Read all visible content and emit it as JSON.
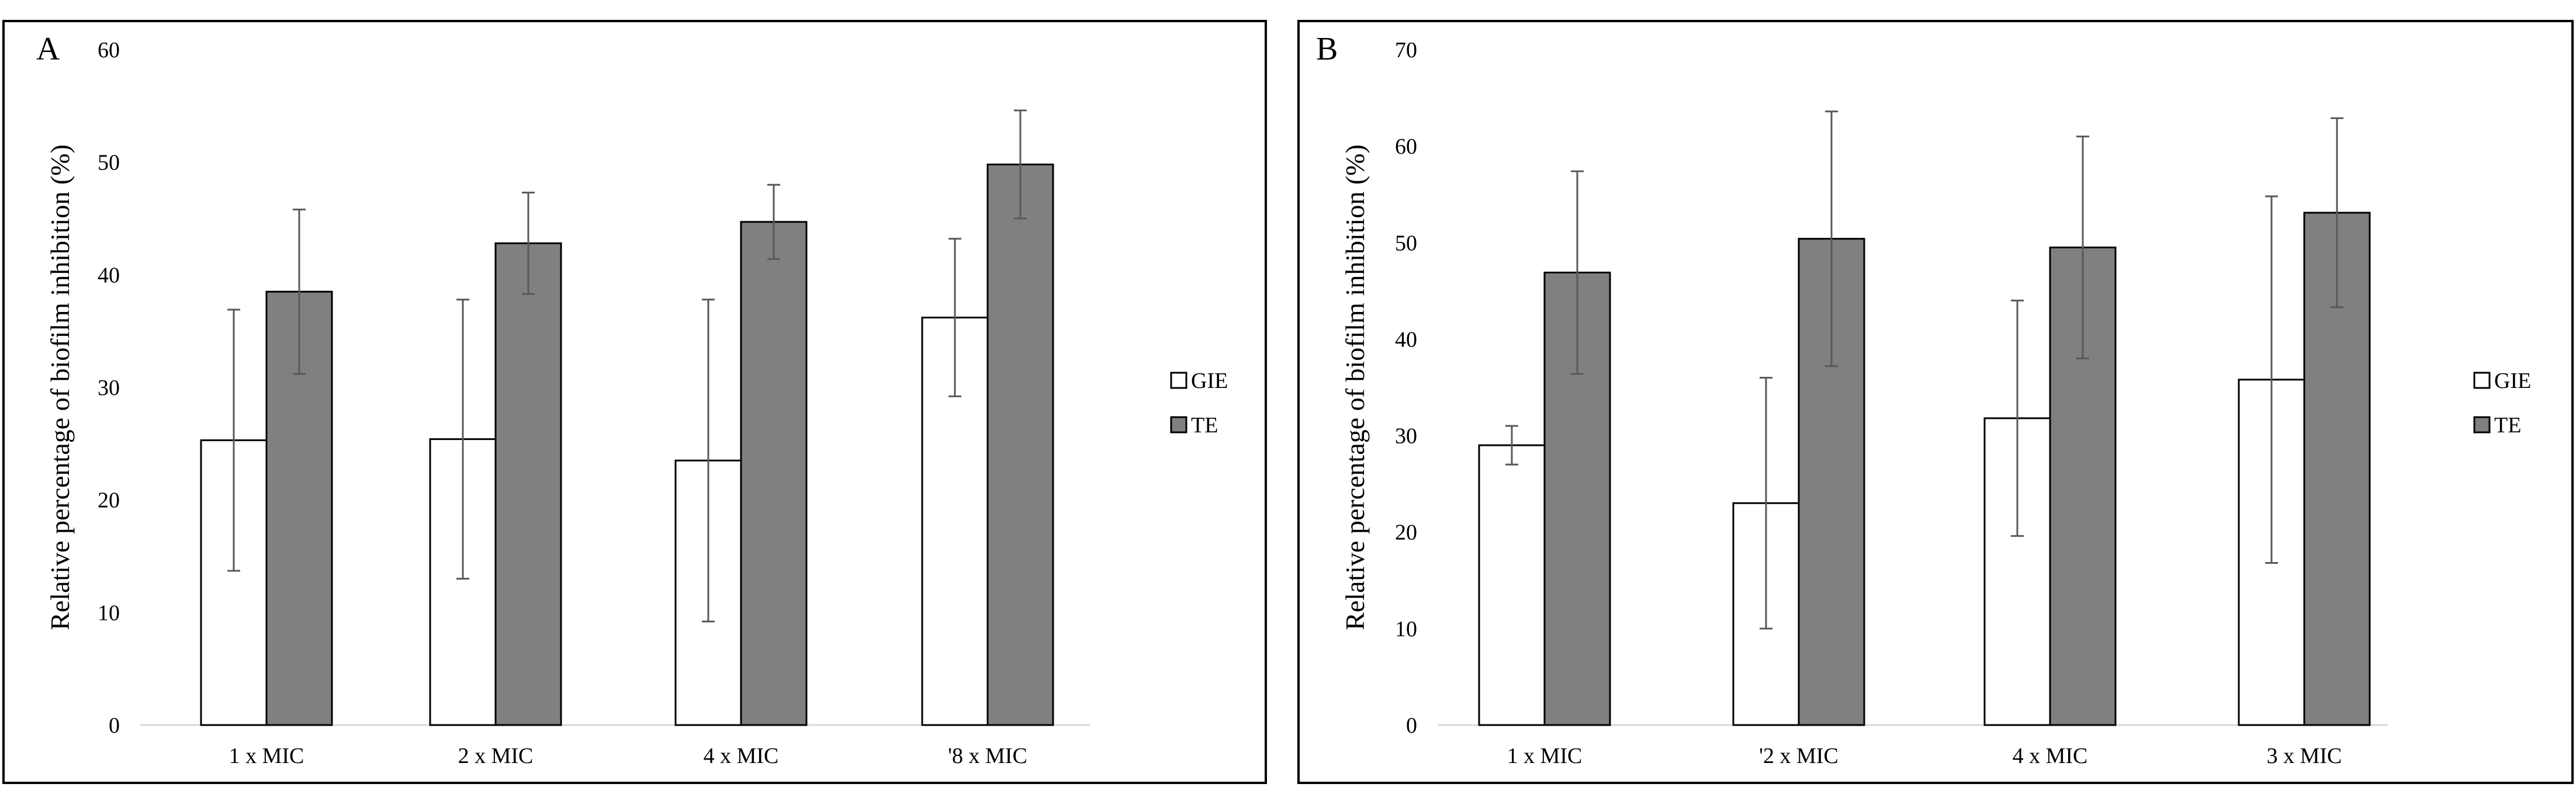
{
  "colors": {
    "gie_fill": "#ffffff",
    "te_fill": "#808080",
    "bar_stroke": "#000000",
    "error_bar": "#595959",
    "frame": "#000000",
    "axis": "#d9d9d9"
  },
  "legend": {
    "gie": "GIE",
    "te": "TE"
  },
  "chart_data": [
    {
      "panel": "A",
      "type": "bar",
      "ylabel": "Relative percentage of biofilm inhibition (%)",
      "xlabel": "",
      "ylim": [
        0,
        60
      ],
      "yticks": [
        "0",
        "10",
        "20",
        "30",
        "40",
        "50",
        "60"
      ],
      "grid": false,
      "legend_position": "right",
      "categories": [
        "1 x MIC",
        "2 x MIC",
        "4 x MIC",
        "'8 x MIC"
      ],
      "series": [
        {
          "name": "GIE",
          "values": [
            25.3,
            25.4,
            23.5,
            36.2
          ],
          "errors": [
            11.6,
            12.4,
            14.3,
            7.0
          ]
        },
        {
          "name": "TE",
          "values": [
            38.5,
            42.8,
            44.7,
            49.8
          ],
          "errors": [
            7.3,
            4.5,
            3.3,
            4.8
          ]
        }
      ]
    },
    {
      "panel": "B",
      "type": "bar",
      "ylabel": "Relative percentage of biofilm inhibition (%)",
      "xlabel": "",
      "ylim": [
        0,
        70
      ],
      "yticks": [
        "0",
        "10",
        "20",
        "30",
        "40",
        "50",
        "60",
        "70"
      ],
      "grid": false,
      "legend_position": "right",
      "categories": [
        "1 x MIC",
        "'2 x MIC",
        "4 x MIC",
        "3 x MIC"
      ],
      "series": [
        {
          "name": "GIE",
          "values": [
            29.0,
            23.0,
            31.8,
            35.8
          ],
          "errors": [
            2.0,
            13.0,
            12.2,
            19.0
          ]
        },
        {
          "name": "TE",
          "values": [
            46.9,
            50.4,
            49.5,
            53.1
          ],
          "errors": [
            10.5,
            13.2,
            11.5,
            9.8
          ]
        }
      ]
    }
  ]
}
